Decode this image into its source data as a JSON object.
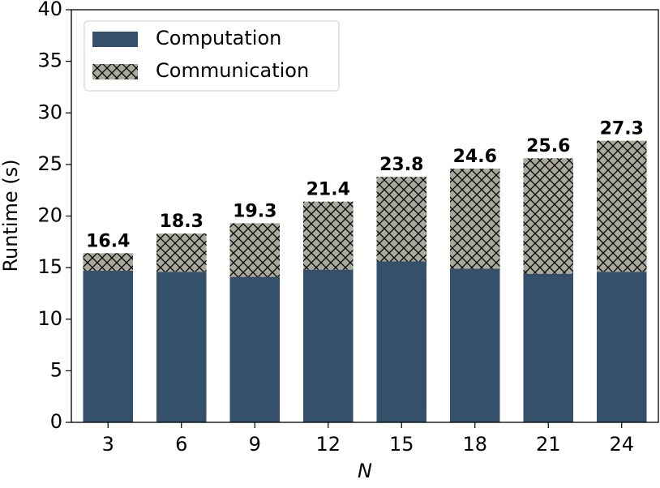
{
  "chart_data": {
    "type": "stacked_bar",
    "x_label": "N",
    "y_label": "Runtime (s)",
    "categories": [
      "3",
      "6",
      "9",
      "12",
      "15",
      "18",
      "21",
      "24"
    ],
    "series": [
      {
        "name": "Computation",
        "color": "#34506a",
        "values": [
          14.7,
          14.6,
          14.1,
          14.8,
          15.6,
          14.9,
          14.4,
          14.6
        ]
      },
      {
        "name": "Communication",
        "color": "#a9a99b",
        "hatch": "x",
        "values": [
          1.7,
          3.7,
          5.2,
          6.6,
          8.2,
          9.7,
          11.2,
          12.7
        ]
      }
    ],
    "totals": [
      16.4,
      18.3,
      19.3,
      21.4,
      23.8,
      24.6,
      25.6,
      27.3
    ],
    "ylim": [
      0,
      40
    ],
    "yticks": [
      0,
      5,
      10,
      15,
      20,
      25,
      30,
      35,
      40
    ],
    "legend": "upper left"
  }
}
